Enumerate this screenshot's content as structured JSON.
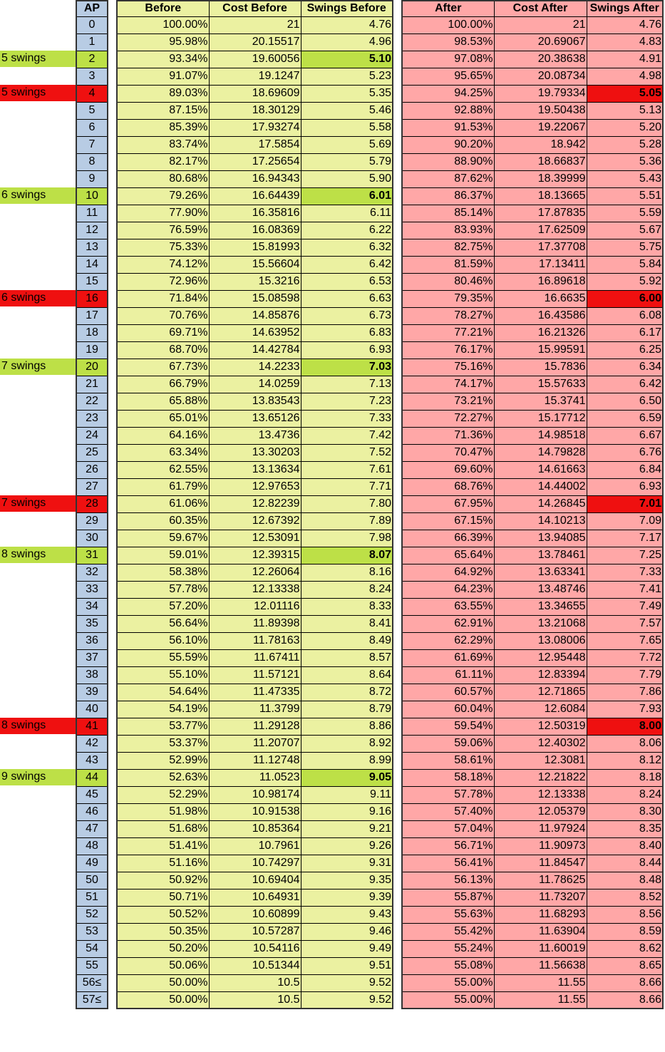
{
  "headers": {
    "label": "",
    "ap": "AP",
    "before": "Before",
    "cost_before": "Cost Before",
    "swings_before": "Swings Before",
    "after": "After",
    "cost_after": "Cost After",
    "swings_after": "Swings After"
  },
  "colors": {
    "ap": "#b8cce4",
    "before": "#ebf1a1",
    "after": "#ffa7a7",
    "green_highlight": "#bde047",
    "red_highlight": "#ef1010"
  },
  "rows": [
    {
      "ap": "0",
      "before": "100.00%",
      "cost_before": "21",
      "swings_before": "4.76",
      "after": "100.00%",
      "cost_after": "21",
      "swings_after": "4.76"
    },
    {
      "ap": "1",
      "before": "95.98%",
      "cost_before": "20.15517",
      "swings_before": "4.96",
      "after": "98.53%",
      "cost_after": "20.69067",
      "swings_after": "4.83"
    },
    {
      "ap": "2",
      "label": "5 swings",
      "highlight": "before",
      "before": "93.34%",
      "cost_before": "19.60056",
      "swings_before": "5.10",
      "after": "97.08%",
      "cost_after": "20.38638",
      "swings_after": "4.91"
    },
    {
      "ap": "3",
      "before": "91.07%",
      "cost_before": "19.1247",
      "swings_before": "5.23",
      "after": "95.65%",
      "cost_after": "20.08734",
      "swings_after": "4.98"
    },
    {
      "ap": "4",
      "label": "5 swings",
      "highlight": "after",
      "before": "89.03%",
      "cost_before": "18.69609",
      "swings_before": "5.35",
      "after": "94.25%",
      "cost_after": "19.79334",
      "swings_after": "5.05"
    },
    {
      "ap": "5",
      "before": "87.15%",
      "cost_before": "18.30129",
      "swings_before": "5.46",
      "after": "92.88%",
      "cost_after": "19.50438",
      "swings_after": "5.13"
    },
    {
      "ap": "6",
      "before": "85.39%",
      "cost_before": "17.93274",
      "swings_before": "5.58",
      "after": "91.53%",
      "cost_after": "19.22067",
      "swings_after": "5.20"
    },
    {
      "ap": "7",
      "before": "83.74%",
      "cost_before": "17.5854",
      "swings_before": "5.69",
      "after": "90.20%",
      "cost_after": "18.942",
      "swings_after": "5.28"
    },
    {
      "ap": "8",
      "before": "82.17%",
      "cost_before": "17.25654",
      "swings_before": "5.79",
      "after": "88.90%",
      "cost_after": "18.66837",
      "swings_after": "5.36"
    },
    {
      "ap": "9",
      "before": "80.68%",
      "cost_before": "16.94343",
      "swings_before": "5.90",
      "after": "87.62%",
      "cost_after": "18.39999",
      "swings_after": "5.43"
    },
    {
      "ap": "10",
      "label": "6 swings",
      "highlight": "before",
      "before": "79.26%",
      "cost_before": "16.64439",
      "swings_before": "6.01",
      "after": "86.37%",
      "cost_after": "18.13665",
      "swings_after": "5.51"
    },
    {
      "ap": "11",
      "before": "77.90%",
      "cost_before": "16.35816",
      "swings_before": "6.11",
      "after": "85.14%",
      "cost_after": "17.87835",
      "swings_after": "5.59"
    },
    {
      "ap": "12",
      "before": "76.59%",
      "cost_before": "16.08369",
      "swings_before": "6.22",
      "after": "83.93%",
      "cost_after": "17.62509",
      "swings_after": "5.67"
    },
    {
      "ap": "13",
      "before": "75.33%",
      "cost_before": "15.81993",
      "swings_before": "6.32",
      "after": "82.75%",
      "cost_after": "17.37708",
      "swings_after": "5.75"
    },
    {
      "ap": "14",
      "before": "74.12%",
      "cost_before": "15.56604",
      "swings_before": "6.42",
      "after": "81.59%",
      "cost_after": "17.13411",
      "swings_after": "5.84"
    },
    {
      "ap": "15",
      "before": "72.96%",
      "cost_before": "15.3216",
      "swings_before": "6.53",
      "after": "80.46%",
      "cost_after": "16.89618",
      "swings_after": "5.92"
    },
    {
      "ap": "16",
      "label": "6 swings",
      "highlight": "after",
      "before": "71.84%",
      "cost_before": "15.08598",
      "swings_before": "6.63",
      "after": "79.35%",
      "cost_after": "16.6635",
      "swings_after": "6.00"
    },
    {
      "ap": "17",
      "before": "70.76%",
      "cost_before": "14.85876",
      "swings_before": "6.73",
      "after": "78.27%",
      "cost_after": "16.43586",
      "swings_after": "6.08"
    },
    {
      "ap": "18",
      "before": "69.71%",
      "cost_before": "14.63952",
      "swings_before": "6.83",
      "after": "77.21%",
      "cost_after": "16.21326",
      "swings_after": "6.17"
    },
    {
      "ap": "19",
      "before": "68.70%",
      "cost_before": "14.42784",
      "swings_before": "6.93",
      "after": "76.17%",
      "cost_after": "15.99591",
      "swings_after": "6.25"
    },
    {
      "ap": "20",
      "label": "7 swings",
      "highlight": "before",
      "before": "67.73%",
      "cost_before": "14.2233",
      "swings_before": "7.03",
      "after": "75.16%",
      "cost_after": "15.7836",
      "swings_after": "6.34"
    },
    {
      "ap": "21",
      "before": "66.79%",
      "cost_before": "14.0259",
      "swings_before": "7.13",
      "after": "74.17%",
      "cost_after": "15.57633",
      "swings_after": "6.42"
    },
    {
      "ap": "22",
      "before": "65.88%",
      "cost_before": "13.83543",
      "swings_before": "7.23",
      "after": "73.21%",
      "cost_after": "15.3741",
      "swings_after": "6.50"
    },
    {
      "ap": "23",
      "before": "65.01%",
      "cost_before": "13.65126",
      "swings_before": "7.33",
      "after": "72.27%",
      "cost_after": "15.17712",
      "swings_after": "6.59"
    },
    {
      "ap": "24",
      "before": "64.16%",
      "cost_before": "13.4736",
      "swings_before": "7.42",
      "after": "71.36%",
      "cost_after": "14.98518",
      "swings_after": "6.67"
    },
    {
      "ap": "25",
      "before": "63.34%",
      "cost_before": "13.30203",
      "swings_before": "7.52",
      "after": "70.47%",
      "cost_after": "14.79828",
      "swings_after": "6.76"
    },
    {
      "ap": "26",
      "before": "62.55%",
      "cost_before": "13.13634",
      "swings_before": "7.61",
      "after": "69.60%",
      "cost_after": "14.61663",
      "swings_after": "6.84"
    },
    {
      "ap": "27",
      "before": "61.79%",
      "cost_before": "12.97653",
      "swings_before": "7.71",
      "after": "68.76%",
      "cost_after": "14.44002",
      "swings_after": "6.93"
    },
    {
      "ap": "28",
      "label": "7 swings",
      "highlight": "after",
      "before": "61.06%",
      "cost_before": "12.82239",
      "swings_before": "7.80",
      "after": "67.95%",
      "cost_after": "14.26845",
      "swings_after": "7.01"
    },
    {
      "ap": "29",
      "before": "60.35%",
      "cost_before": "12.67392",
      "swings_before": "7.89",
      "after": "67.15%",
      "cost_after": "14.10213",
      "swings_after": "7.09"
    },
    {
      "ap": "30",
      "before": "59.67%",
      "cost_before": "12.53091",
      "swings_before": "7.98",
      "after": "66.39%",
      "cost_after": "13.94085",
      "swings_after": "7.17"
    },
    {
      "ap": "31",
      "label": "8 swings",
      "highlight": "before",
      "before": "59.01%",
      "cost_before": "12.39315",
      "swings_before": "8.07",
      "after": "65.64%",
      "cost_after": "13.78461",
      "swings_after": "7.25"
    },
    {
      "ap": "32",
      "before": "58.38%",
      "cost_before": "12.26064",
      "swings_before": "8.16",
      "after": "64.92%",
      "cost_after": "13.63341",
      "swings_after": "7.33"
    },
    {
      "ap": "33",
      "before": "57.78%",
      "cost_before": "12.13338",
      "swings_before": "8.24",
      "after": "64.23%",
      "cost_after": "13.48746",
      "swings_after": "7.41"
    },
    {
      "ap": "34",
      "before": "57.20%",
      "cost_before": "12.01116",
      "swings_before": "8.33",
      "after": "63.55%",
      "cost_after": "13.34655",
      "swings_after": "7.49"
    },
    {
      "ap": "35",
      "before": "56.64%",
      "cost_before": "11.89398",
      "swings_before": "8.41",
      "after": "62.91%",
      "cost_after": "13.21068",
      "swings_after": "7.57"
    },
    {
      "ap": "36",
      "before": "56.10%",
      "cost_before": "11.78163",
      "swings_before": "8.49",
      "after": "62.29%",
      "cost_after": "13.08006",
      "swings_after": "7.65"
    },
    {
      "ap": "37",
      "before": "55.59%",
      "cost_before": "11.67411",
      "swings_before": "8.57",
      "after": "61.69%",
      "cost_after": "12.95448",
      "swings_after": "7.72"
    },
    {
      "ap": "38",
      "before": "55.10%",
      "cost_before": "11.57121",
      "swings_before": "8.64",
      "after": "61.11%",
      "cost_after": "12.83394",
      "swings_after": "7.79"
    },
    {
      "ap": "39",
      "before": "54.64%",
      "cost_before": "11.47335",
      "swings_before": "8.72",
      "after": "60.57%",
      "cost_after": "12.71865",
      "swings_after": "7.86"
    },
    {
      "ap": "40",
      "before": "54.19%",
      "cost_before": "11.3799",
      "swings_before": "8.79",
      "after": "60.04%",
      "cost_after": "12.6084",
      "swings_after": "7.93"
    },
    {
      "ap": "41",
      "label": "8 swings",
      "highlight": "after",
      "before": "53.77%",
      "cost_before": "11.29128",
      "swings_before": "8.86",
      "after": "59.54%",
      "cost_after": "12.50319",
      "swings_after": "8.00"
    },
    {
      "ap": "42",
      "before": "53.37%",
      "cost_before": "11.20707",
      "swings_before": "8.92",
      "after": "59.06%",
      "cost_after": "12.40302",
      "swings_after": "8.06"
    },
    {
      "ap": "43",
      "before": "52.99%",
      "cost_before": "11.12748",
      "swings_before": "8.99",
      "after": "58.61%",
      "cost_after": "12.3081",
      "swings_after": "8.12"
    },
    {
      "ap": "44",
      "label": "9 swings",
      "highlight": "before",
      "before": "52.63%",
      "cost_before": "11.0523",
      "swings_before": "9.05",
      "after": "58.18%",
      "cost_after": "12.21822",
      "swings_after": "8.18"
    },
    {
      "ap": "45",
      "before": "52.29%",
      "cost_before": "10.98174",
      "swings_before": "9.11",
      "after": "57.78%",
      "cost_after": "12.13338",
      "swings_after": "8.24"
    },
    {
      "ap": "46",
      "before": "51.98%",
      "cost_before": "10.91538",
      "swings_before": "9.16",
      "after": "57.40%",
      "cost_after": "12.05379",
      "swings_after": "8.30"
    },
    {
      "ap": "47",
      "before": "51.68%",
      "cost_before": "10.85364",
      "swings_before": "9.21",
      "after": "57.04%",
      "cost_after": "11.97924",
      "swings_after": "8.35"
    },
    {
      "ap": "48",
      "before": "51.41%",
      "cost_before": "10.7961",
      "swings_before": "9.26",
      "after": "56.71%",
      "cost_after": "11.90973",
      "swings_after": "8.40"
    },
    {
      "ap": "49",
      "before": "51.16%",
      "cost_before": "10.74297",
      "swings_before": "9.31",
      "after": "56.41%",
      "cost_after": "11.84547",
      "swings_after": "8.44"
    },
    {
      "ap": "50",
      "before": "50.92%",
      "cost_before": "10.69404",
      "swings_before": "9.35",
      "after": "56.13%",
      "cost_after": "11.78625",
      "swings_after": "8.48"
    },
    {
      "ap": "51",
      "before": "50.71%",
      "cost_before": "10.64931",
      "swings_before": "9.39",
      "after": "55.87%",
      "cost_after": "11.73207",
      "swings_after": "8.52"
    },
    {
      "ap": "52",
      "before": "50.52%",
      "cost_before": "10.60899",
      "swings_before": "9.43",
      "after": "55.63%",
      "cost_after": "11.68293",
      "swings_after": "8.56"
    },
    {
      "ap": "53",
      "before": "50.35%",
      "cost_before": "10.57287",
      "swings_before": "9.46",
      "after": "55.42%",
      "cost_after": "11.63904",
      "swings_after": "8.59"
    },
    {
      "ap": "54",
      "before": "50.20%",
      "cost_before": "10.54116",
      "swings_before": "9.49",
      "after": "55.24%",
      "cost_after": "11.60019",
      "swings_after": "8.62"
    },
    {
      "ap": "55",
      "before": "50.06%",
      "cost_before": "10.51344",
      "swings_before": "9.51",
      "after": "55.08%",
      "cost_after": "11.56638",
      "swings_after": "8.65"
    },
    {
      "ap": "56≤",
      "before": "50.00%",
      "cost_before": "10.5",
      "swings_before": "9.52",
      "after": "55.00%",
      "cost_after": "11.55",
      "swings_after": "8.66"
    },
    {
      "ap": "57≤",
      "before": "50.00%",
      "cost_before": "10.5",
      "swings_before": "9.52",
      "after": "55.00%",
      "cost_after": "11.55",
      "swings_after": "8.66"
    }
  ]
}
